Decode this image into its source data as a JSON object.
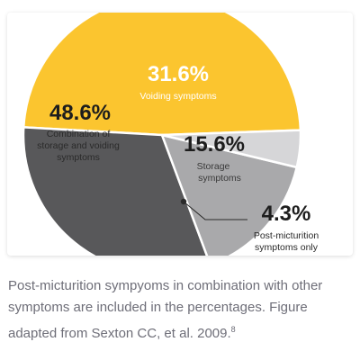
{
  "chart_data": {
    "type": "pie",
    "slices": [
      {
        "value": 48.6,
        "value_label": "48.6%",
        "label_lines": [
          "Combination of",
          "storage and voiding",
          "symptoms"
        ],
        "color": "#fbc52f"
      },
      {
        "value": 31.6,
        "value_label": "31.6%",
        "label_lines": [
          "Voiding symptoms"
        ],
        "color": "#58585a"
      },
      {
        "value": 15.6,
        "value_label": "15.6%",
        "label_lines": [
          "Storage",
          "symptoms"
        ],
        "color": "#a9a9ab"
      },
      {
        "value": 4.3,
        "value_label": "4.3%",
        "label_lines": [
          "Post-micturition",
          "symptoms only"
        ],
        "color": "#d6d6d8"
      }
    ],
    "start_angle_deg": -2,
    "direction": "counterclockwise",
    "legend": "none"
  },
  "caption": {
    "text": "Post-micturition sympyoms in combination with other symptoms are included in the percentages. Figure adapted from Sexton CC, et al. 2009.",
    "ref": "8"
  }
}
